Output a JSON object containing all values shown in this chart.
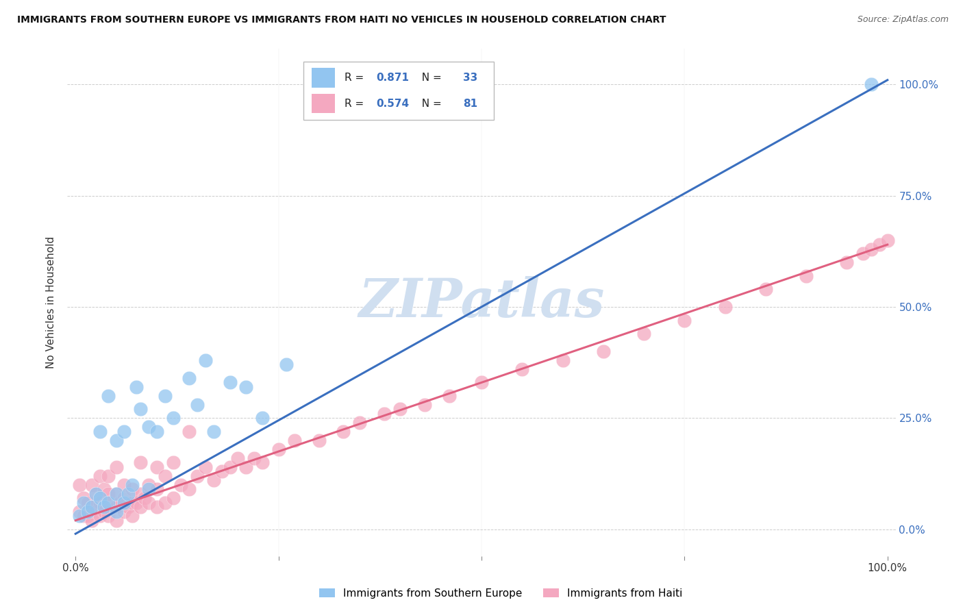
{
  "title": "IMMIGRANTS FROM SOUTHERN EUROPE VS IMMIGRANTS FROM HAITI NO VEHICLES IN HOUSEHOLD CORRELATION CHART",
  "source": "Source: ZipAtlas.com",
  "ylabel": "No Vehicles in Household",
  "legend_label1": "Immigrants from Southern Europe",
  "legend_label2": "Immigrants from Haiti",
  "R1": 0.871,
  "N1": 33,
  "R2": 0.574,
  "N2": 81,
  "color_blue": "#92C5F0",
  "color_pink": "#F4A8C0",
  "line_color_blue": "#3A6FBF",
  "line_color_pink": "#E06080",
  "background_color": "#FFFFFF",
  "grid_color": "#CCCCCC",
  "watermark_color": "#D0DFF0",
  "blue_line_slope": 1.02,
  "blue_line_intercept": -0.01,
  "pink_line_slope": 0.62,
  "pink_line_intercept": 0.02,
  "blue_x": [
    0.005,
    0.01,
    0.015,
    0.02,
    0.025,
    0.03,
    0.03,
    0.035,
    0.04,
    0.04,
    0.05,
    0.05,
    0.05,
    0.06,
    0.06,
    0.065,
    0.07,
    0.075,
    0.08,
    0.09,
    0.09,
    0.1,
    0.11,
    0.12,
    0.14,
    0.15,
    0.16,
    0.17,
    0.19,
    0.21,
    0.23,
    0.26,
    0.98
  ],
  "blue_y": [
    0.03,
    0.06,
    0.04,
    0.05,
    0.08,
    0.07,
    0.22,
    0.05,
    0.06,
    0.3,
    0.04,
    0.08,
    0.2,
    0.06,
    0.22,
    0.08,
    0.1,
    0.32,
    0.27,
    0.23,
    0.09,
    0.22,
    0.3,
    0.25,
    0.34,
    0.28,
    0.38,
    0.22,
    0.33,
    0.32,
    0.25,
    0.37,
    1.0
  ],
  "pink_x": [
    0.005,
    0.005,
    0.01,
    0.01,
    0.015,
    0.015,
    0.02,
    0.02,
    0.02,
    0.025,
    0.025,
    0.03,
    0.03,
    0.03,
    0.035,
    0.035,
    0.04,
    0.04,
    0.04,
    0.04,
    0.05,
    0.05,
    0.05,
    0.05,
    0.055,
    0.06,
    0.06,
    0.06,
    0.065,
    0.07,
    0.07,
    0.07,
    0.075,
    0.08,
    0.08,
    0.08,
    0.085,
    0.09,
    0.09,
    0.1,
    0.1,
    0.1,
    0.11,
    0.11,
    0.12,
    0.12,
    0.13,
    0.14,
    0.14,
    0.15,
    0.16,
    0.17,
    0.18,
    0.19,
    0.2,
    0.21,
    0.22,
    0.23,
    0.25,
    0.27,
    0.3,
    0.33,
    0.35,
    0.38,
    0.4,
    0.43,
    0.46,
    0.5,
    0.55,
    0.6,
    0.65,
    0.7,
    0.75,
    0.8,
    0.85,
    0.9,
    0.95,
    0.97,
    0.98,
    0.99,
    1.0
  ],
  "pink_y": [
    0.04,
    0.1,
    0.03,
    0.07,
    0.03,
    0.06,
    0.02,
    0.05,
    0.1,
    0.04,
    0.08,
    0.03,
    0.06,
    0.12,
    0.04,
    0.09,
    0.03,
    0.06,
    0.08,
    0.12,
    0.02,
    0.05,
    0.08,
    0.14,
    0.06,
    0.04,
    0.07,
    0.1,
    0.05,
    0.03,
    0.06,
    0.09,
    0.06,
    0.05,
    0.08,
    0.15,
    0.07,
    0.06,
    0.1,
    0.05,
    0.09,
    0.14,
    0.06,
    0.12,
    0.07,
    0.15,
    0.1,
    0.09,
    0.22,
    0.12,
    0.14,
    0.11,
    0.13,
    0.14,
    0.16,
    0.14,
    0.16,
    0.15,
    0.18,
    0.2,
    0.2,
    0.22,
    0.24,
    0.26,
    0.27,
    0.28,
    0.3,
    0.33,
    0.36,
    0.38,
    0.4,
    0.44,
    0.47,
    0.5,
    0.54,
    0.57,
    0.6,
    0.62,
    0.63,
    0.64,
    0.65
  ]
}
